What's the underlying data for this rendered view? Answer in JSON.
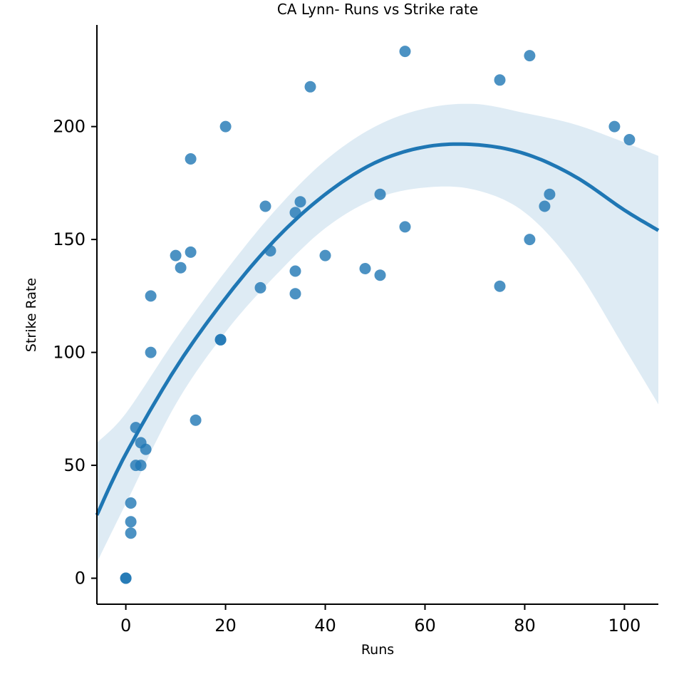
{
  "chart_data": {
    "type": "scatter",
    "title": "CA Lynn- Runs vs Strike rate",
    "xlabel": "Runs",
    "ylabel": "Strike Rate",
    "xlim": [
      -5.8,
      106.8
    ],
    "ylim": [
      -11.5,
      245
    ],
    "xticks": [
      0,
      20,
      40,
      60,
      80,
      100
    ],
    "yticks": [
      0,
      50,
      100,
      150,
      200
    ],
    "grid": false,
    "colors": {
      "points": "#1f77b4",
      "line": "#1f77b4",
      "band": "#1f77b4"
    },
    "points": [
      [
        0,
        0
      ],
      [
        0,
        0
      ],
      [
        1,
        20
      ],
      [
        1,
        25
      ],
      [
        1,
        33.3
      ],
      [
        2,
        50
      ],
      [
        2,
        66.7
      ],
      [
        3,
        50
      ],
      [
        3,
        60
      ],
      [
        4,
        57.1
      ],
      [
        5,
        100
      ],
      [
        5,
        125
      ],
      [
        10,
        142.9
      ],
      [
        11,
        137.5
      ],
      [
        13,
        144.4
      ],
      [
        13,
        185.7
      ],
      [
        14,
        70
      ],
      [
        19,
        105.6
      ],
      [
        19,
        105.6
      ],
      [
        20,
        200
      ],
      [
        27,
        128.6
      ],
      [
        28,
        164.7
      ],
      [
        29,
        145
      ],
      [
        34,
        126
      ],
      [
        34,
        136
      ],
      [
        34,
        161.9
      ],
      [
        35,
        166.7
      ],
      [
        37,
        217.6
      ],
      [
        40,
        142.9
      ],
      [
        48,
        137.1
      ],
      [
        51,
        134.2
      ],
      [
        51,
        170
      ],
      [
        56,
        155.6
      ],
      [
        56,
        233.3
      ],
      [
        75,
        129.3
      ],
      [
        75,
        220.6
      ],
      [
        81,
        150
      ],
      [
        81,
        231.4
      ],
      [
        84,
        164.7
      ],
      [
        85,
        170
      ],
      [
        98,
        200
      ],
      [
        101,
        194.2
      ]
    ],
    "regression": {
      "order": 2,
      "x": [
        -5.8,
        0,
        10,
        20,
        30,
        40,
        50,
        60,
        70,
        80,
        90,
        100,
        106.8
      ],
      "y": [
        28,
        55,
        93,
        124,
        150,
        170,
        184,
        191,
        192,
        188,
        178,
        163,
        154
      ],
      "ci_upper": [
        60,
        73,
        106,
        136,
        163,
        185,
        200,
        208,
        210,
        206,
        201,
        193,
        187
      ],
      "ci_lower": [
        7,
        33,
        77,
        109,
        134,
        155,
        168,
        173,
        172,
        162,
        138,
        102,
        77
      ]
    }
  }
}
